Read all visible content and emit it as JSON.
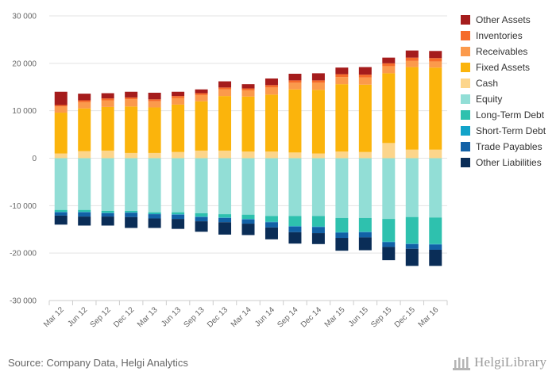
{
  "source": "Source: Company Data, Helgi Analytics",
  "brand": "HelgiLibrary",
  "chart_data": {
    "type": "bar",
    "stacked": true,
    "categories": [
      "Mar 12",
      "Jun 12",
      "Sep 12",
      "Dec 12",
      "Mar 13",
      "Jun 13",
      "Sep 13",
      "Dec 13",
      "Mar 14",
      "Jun 14",
      "Sep 14",
      "Dec 14",
      "Mar 15",
      "Jun 15",
      "Sep 15",
      "Dec 15",
      "Mar 16"
    ],
    "ylim": [
      -30000,
      30000
    ],
    "yticks": [
      30000,
      20000,
      10000,
      0,
      -10000,
      -20000,
      -30000
    ],
    "ytick_labels": [
      "30 000",
      "20 000",
      "10 000",
      "0",
      "-10 000",
      "-20 000",
      "-30 000"
    ],
    "grid": true,
    "legend_position": "right",
    "assets": [
      {
        "name": "Cash",
        "color": "#fcd58b",
        "values": [
          1000,
          1500,
          1600,
          1100,
          1100,
          1300,
          1600,
          1600,
          1400,
          1400,
          1200,
          1000,
          1400,
          1300,
          3200,
          1800,
          1800
        ]
      },
      {
        "name": "Fixed Assets",
        "color": "#fbb40c",
        "values": [
          8600,
          9000,
          9200,
          9800,
          9600,
          10000,
          10400,
          11500,
          11600,
          12000,
          13300,
          13400,
          14200,
          14200,
          14700,
          17400,
          17300
        ]
      },
      {
        "name": "Receivables",
        "color": "#fb9a4c",
        "values": [
          1300,
          1300,
          1400,
          1500,
          1300,
          1400,
          1300,
          1400,
          1300,
          1500,
          1400,
          1500,
          1500,
          1500,
          1500,
          1300,
          1300
        ]
      },
      {
        "name": "Inventories",
        "color": "#f56b2a",
        "values": [
          300,
          400,
          400,
          400,
          400,
          400,
          400,
          400,
          400,
          500,
          500,
          500,
          600,
          600,
          600,
          700,
          700
        ]
      },
      {
        "name": "Other Assets",
        "color": "#a51c1c",
        "values": [
          2800,
          1400,
          1100,
          1200,
          1400,
          900,
          800,
          1300,
          900,
          1400,
          1400,
          1500,
          1400,
          1600,
          1200,
          1500,
          1500
        ]
      }
    ],
    "liabilities": [
      {
        "name": "Equity",
        "color": "#92ded6",
        "values": [
          -10900,
          -10900,
          -11100,
          -11100,
          -11400,
          -11400,
          -11600,
          -11800,
          -11900,
          -12200,
          -12200,
          -12200,
          -12600,
          -12600,
          -12800,
          -12400,
          -12500
        ]
      },
      {
        "name": "Long-Term Debt",
        "color": "#2ec1ae",
        "values": [
          -400,
          -400,
          -400,
          -300,
          -300,
          -400,
          -700,
          -700,
          -900,
          -1200,
          -2100,
          -2200,
          -3000,
          -2900,
          -4800,
          -5600,
          -5600
        ]
      },
      {
        "name": "Short-Term Debt",
        "color": "#12a3c9",
        "values": [
          -100,
          -100,
          -100,
          -100,
          -100,
          -100,
          -100,
          -100,
          -100,
          -100,
          -100,
          -100,
          -100,
          -100,
          -100,
          -100,
          -100
        ]
      },
      {
        "name": "Trade Payables",
        "color": "#1261a6",
        "values": [
          -700,
          -900,
          -700,
          -900,
          -900,
          -900,
          -900,
          -900,
          -900,
          -1100,
          -1200,
          -1300,
          -1100,
          -1100,
          -1000,
          -1000,
          -1100
        ]
      },
      {
        "name": "Other Liabilities",
        "color": "#0a2d57",
        "values": [
          -1900,
          -1900,
          -1900,
          -2300,
          -2000,
          -2100,
          -2200,
          -2600,
          -2400,
          -2500,
          -2400,
          -2300,
          -2700,
          -2700,
          -2800,
          -3600,
          -3400
        ]
      }
    ],
    "legend": [
      {
        "name": "Other Assets",
        "color": "#a51c1c"
      },
      {
        "name": "Inventories",
        "color": "#f56b2a"
      },
      {
        "name": "Receivables",
        "color": "#fb9a4c"
      },
      {
        "name": "Fixed Assets",
        "color": "#fbb40c"
      },
      {
        "name": "Cash",
        "color": "#fcd58b"
      },
      {
        "name": "Equity",
        "color": "#92ded6"
      },
      {
        "name": "Long-Term Debt",
        "color": "#2ec1ae"
      },
      {
        "name": "Short-Term Debt",
        "color": "#12a3c9"
      },
      {
        "name": "Trade Payables",
        "color": "#1261a6"
      },
      {
        "name": "Other Liabilities",
        "color": "#0a2d57"
      }
    ]
  }
}
